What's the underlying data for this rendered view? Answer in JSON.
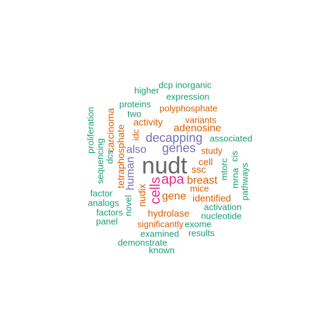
{
  "colors": {
    "green": "#1b9e77",
    "orange": "#d95f02",
    "purple": "#7570b3",
    "pink": "#e7298a",
    "gray": "#666666"
  },
  "words": {
    "nudt": "nudt",
    "apa": "apa",
    "cells": "cells",
    "decapping": "decapping",
    "genes": "genes",
    "breast": "breast",
    "gene": "gene",
    "also": "also",
    "human": "human",
    "adenosine": "adenosine",
    "activity": "activity",
    "polyphosphate": "polyphosphate",
    "carcinoma": "carcinoma",
    "tetraphosphate": "tetraphosphate",
    "nudix": "nudix",
    "hydrolase": "hydrolase",
    "identified": "identified",
    "cell": "cell",
    "ssc": "ssc",
    "mice": "mice",
    "study": "study",
    "variants": "variants",
    "significantly": "significantly",
    "idc": "idc",
    "dcs": "dcs",
    "associated": "associated",
    "expression": "expression",
    "dcp inorganic": "dcp inorganic",
    "higher": "higher",
    "proteins": "proteins",
    "two": "two",
    "proliferation": "proliferation",
    "sequencing": "sequencing",
    "factor": "factor",
    "analogs": "analogs",
    "factors": "factors",
    "panel": "panel",
    "novel": "novel",
    "activation": "activation",
    "nucleotide": "nucleotide",
    "exome": "exome",
    "results": "results",
    "examined": "examined",
    "demonstrate": "demonstrate",
    "known": "known",
    "mtorc": "mtorc",
    "mrna": "mrna",
    "cis": "cis",
    "pathways": "pathways"
  }
}
